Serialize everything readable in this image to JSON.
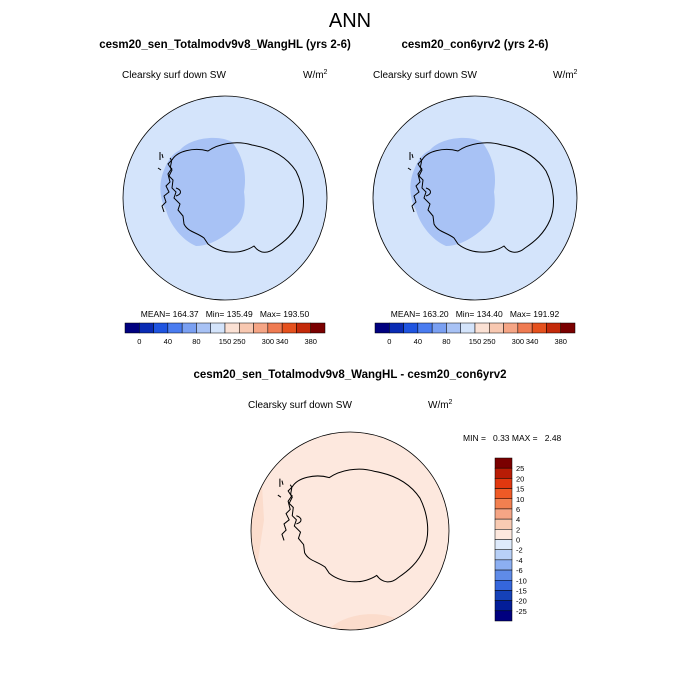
{
  "chart_data": {
    "type": "map",
    "title": "ANN",
    "units_base": "W/m",
    "units_exp": "2",
    "variable": "Clearsky surf down SW",
    "panels": [
      {
        "id": "p1",
        "title": "cesm20_sen_Totalmodv9v8_WangHL (yrs 2-6)",
        "variable": "Clearsky surf down SW",
        "stats": {
          "mean": "164.37",
          "min": "135.49",
          "max": "193.50"
        },
        "stats_text": "MEAN= 164.37   Min= 135.49   Max= 193.50",
        "colorbar": {
          "orientation": "horizontal",
          "labels": [
            "0",
            "40",
            "80",
            "150",
            "250",
            "300",
            "340",
            "380"
          ],
          "colors": [
            "#00007f",
            "#0a2bb4",
            "#1f54e0",
            "#4a7cf0",
            "#7aa0f2",
            "#a8c2f5",
            "#d4e4fb",
            "#fbe1d4",
            "#f8c8b1",
            "#f5a585",
            "#ef7b52",
            "#e5511e",
            "#c42a0a",
            "#7a0000"
          ]
        }
      },
      {
        "id": "p2",
        "title": "cesm20_con6yrv2 (yrs 2-6)",
        "variable": "Clearsky surf down SW",
        "stats": {
          "mean": "163.20",
          "min": "134.40",
          "max": "191.92"
        },
        "stats_text": "MEAN= 163.20   Min= 134.40   Max= 191.92",
        "colorbar": {
          "orientation": "horizontal",
          "labels": [
            "0",
            "40",
            "80",
            "150",
            "250",
            "300",
            "340",
            "380"
          ],
          "colors": [
            "#00007f",
            "#0a2bb4",
            "#1f54e0",
            "#4a7cf0",
            "#7aa0f2",
            "#a8c2f5",
            "#d4e4fb",
            "#fbe1d4",
            "#f8c8b1",
            "#f5a585",
            "#ef7b52",
            "#e5511e",
            "#c42a0a",
            "#7a0000"
          ]
        }
      },
      {
        "id": "diff",
        "title": "cesm20_sen_Totalmodv9v8_WangHL - cesm20_con6yrv2",
        "variable": "Clearsky surf down SW",
        "stats": {
          "min": "0.33",
          "max": "2.48"
        },
        "stats_text": "MIN =   0.33 MAX =   2.48",
        "colorbar": {
          "orientation": "vertical",
          "labels_top_to_bottom": [
            "25",
            "20",
            "15",
            "10",
            "6",
            "4",
            "2",
            "0",
            "-2",
            "-4",
            "-6",
            "-10",
            "-15",
            "-20",
            "-25"
          ],
          "colors_top_to_bottom": [
            "#7a0000",
            "#b81c05",
            "#e1380f",
            "#ef5a26",
            "#f28050",
            "#f5a585",
            "#f9cbb3",
            "#fde8de",
            "#deeafb",
            "#b8d0f7",
            "#8caff2",
            "#5f8be8",
            "#3566dc",
            "#1541b8",
            "#031d98",
            "#00007f"
          ]
        }
      }
    ],
    "field_colors": {
      "ocean_abs": "#d4e4fb",
      "interior_abs": "#a8c2f5",
      "diff_fill": "#fde8de",
      "diff_edge": "#fbdccc"
    }
  }
}
